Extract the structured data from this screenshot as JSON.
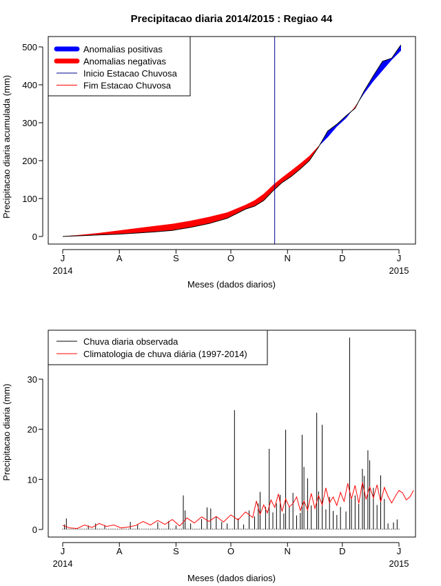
{
  "chart_data": [
    {
      "type": "area",
      "title": "Precipitacao diaria 2014/2015 : Regiao 44",
      "xlabel": "Meses (dados diarios)",
      "ylabel": "Precipitacao diaria acumulada (mm)",
      "ylim": [
        0,
        500
      ],
      "yticks": [
        0,
        100,
        200,
        300,
        400,
        500
      ],
      "month_ticks": [
        {
          "label": "J",
          "day": 0,
          "year": "2014"
        },
        {
          "label": "A",
          "day": 31
        },
        {
          "label": "S",
          "day": 62
        },
        {
          "label": "O",
          "day": 92
        },
        {
          "label": "N",
          "day": 123
        },
        {
          "label": "D",
          "day": 153
        },
        {
          "label": "J",
          "day": 184,
          "year": "2015"
        }
      ],
      "legend": {
        "position": "top-left",
        "items": [
          {
            "label": "Anomalias positivas",
            "color": "#0000ff",
            "style": "thick"
          },
          {
            "label": "Anomalias negativas",
            "color": "#ff0000",
            "style": "thick"
          },
          {
            "label": "Inicio Estacao Chuvosa",
            "color": "#00008b",
            "style": "line"
          },
          {
            "label": "Fim Estacao Chuvosa",
            "color": "#ff0000",
            "style": "line"
          }
        ]
      },
      "rainy_season_start_day": 116,
      "x_days": [
        0,
        10,
        20,
        30,
        40,
        50,
        60,
        70,
        80,
        90,
        100,
        105,
        110,
        115,
        120,
        125,
        130,
        135,
        140,
        145,
        150,
        155,
        160,
        165,
        170,
        175,
        180,
        185
      ],
      "observed": [
        0,
        2,
        4,
        6,
        9,
        12,
        16,
        24,
        34,
        48,
        72,
        80,
        95,
        120,
        142,
        158,
        178,
        200,
        236,
        278,
        296,
        318,
        338,
        384,
        424,
        462,
        470,
        505
      ],
      "climatology": [
        0,
        4,
        9,
        15,
        21,
        27,
        33,
        41,
        51,
        63,
        83,
        95,
        112,
        135,
        155,
        173,
        192,
        212,
        238,
        262,
        290,
        312,
        342,
        378,
        410,
        438,
        466,
        490
      ],
      "colors": {
        "positive": "#0000ff",
        "negative": "#ff0000",
        "line": "#000000",
        "start_line": "#00008b"
      }
    },
    {
      "type": "bar",
      "xlabel": "Meses (dados diarios)",
      "ylabel": "Precipitacao diaria (mm)",
      "ylim": [
        0,
        39
      ],
      "yticks": [
        0,
        10,
        20,
        30
      ],
      "month_ticks": [
        {
          "label": "J",
          "day": 0,
          "year": "2014"
        },
        {
          "label": "A",
          "day": 31
        },
        {
          "label": "S",
          "day": 62
        },
        {
          "label": "O",
          "day": 92
        },
        {
          "label": "N",
          "day": 123
        },
        {
          "label": "D",
          "day": 153
        },
        {
          "label": "J",
          "day": 184,
          "year": "2015"
        }
      ],
      "legend": {
        "position": "top-left",
        "items": [
          {
            "label": "Chuva diaria observada",
            "color": "#000000"
          },
          {
            "label": "Climatologia de chuva diária (1997-2014)",
            "color": "#ff0000"
          }
        ]
      },
      "observed_bars": [
        {
          "day": 1,
          "value": 1
        },
        {
          "day": 2,
          "value": 2.2
        },
        {
          "day": 14,
          "value": 0.8
        },
        {
          "day": 18,
          "value": 1.2
        },
        {
          "day": 23,
          "value": 0.9
        },
        {
          "day": 37,
          "value": 1.5
        },
        {
          "day": 41,
          "value": 1
        },
        {
          "day": 52,
          "value": 1.4
        },
        {
          "day": 58,
          "value": 1.7
        },
        {
          "day": 62,
          "value": 0.8
        },
        {
          "day": 66,
          "value": 6.8
        },
        {
          "day": 67,
          "value": 3.8
        },
        {
          "day": 70,
          "value": 1.2
        },
        {
          "day": 76,
          "value": 2.1
        },
        {
          "day": 79,
          "value": 4.4
        },
        {
          "day": 81,
          "value": 4.2
        },
        {
          "day": 84,
          "value": 2.6
        },
        {
          "day": 87,
          "value": 1.5
        },
        {
          "day": 90,
          "value": 1.2
        },
        {
          "day": 94,
          "value": 23.8
        },
        {
          "day": 96,
          "value": 2.2
        },
        {
          "day": 99,
          "value": 1
        },
        {
          "day": 102,
          "value": 3.8
        },
        {
          "day": 105,
          "value": 2.6
        },
        {
          "day": 107,
          "value": 5.2
        },
        {
          "day": 108,
          "value": 7.5
        },
        {
          "day": 111,
          "value": 4.5
        },
        {
          "day": 113,
          "value": 16.1
        },
        {
          "day": 115,
          "value": 3.4
        },
        {
          "day": 117,
          "value": 5.2
        },
        {
          "day": 119,
          "value": 6.9
        },
        {
          "day": 121,
          "value": 3.2
        },
        {
          "day": 122,
          "value": 19.9
        },
        {
          "day": 124,
          "value": 4.6
        },
        {
          "day": 126,
          "value": 7.3
        },
        {
          "day": 128,
          "value": 2.8
        },
        {
          "day": 130,
          "value": 3.3
        },
        {
          "day": 131,
          "value": 18.9
        },
        {
          "day": 132,
          "value": 12.5
        },
        {
          "day": 134,
          "value": 10.2
        },
        {
          "day": 136,
          "value": 4.8
        },
        {
          "day": 139,
          "value": 23.3
        },
        {
          "day": 140,
          "value": 7.6
        },
        {
          "day": 142,
          "value": 20.9
        },
        {
          "day": 144,
          "value": 4
        },
        {
          "day": 146,
          "value": 6.5
        },
        {
          "day": 148,
          "value": 3.7
        },
        {
          "day": 150,
          "value": 2.9
        },
        {
          "day": 152,
          "value": 4.5
        },
        {
          "day": 155,
          "value": 3.6
        },
        {
          "day": 157,
          "value": 38.3
        },
        {
          "day": 158,
          "value": 6.1
        },
        {
          "day": 160,
          "value": 6.8
        },
        {
          "day": 162,
          "value": 5.1
        },
        {
          "day": 164,
          "value": 12.1
        },
        {
          "day": 165,
          "value": 10.7
        },
        {
          "day": 167,
          "value": 15.8
        },
        {
          "day": 168,
          "value": 13.8
        },
        {
          "day": 170,
          "value": 8.3
        },
        {
          "day": 172,
          "value": 4.9
        },
        {
          "day": 174,
          "value": 10.8
        },
        {
          "day": 176,
          "value": 6.1
        },
        {
          "day": 178,
          "value": 1.2
        },
        {
          "day": 181,
          "value": 1.4
        },
        {
          "day": 183,
          "value": 2
        }
      ],
      "climatology_days": [
        0,
        4,
        8,
        12,
        16,
        20,
        24,
        28,
        32,
        36,
        40,
        44,
        48,
        52,
        56,
        60,
        64,
        68,
        72,
        76,
        80,
        84,
        88,
        92,
        96,
        100,
        104,
        106,
        108,
        110,
        112,
        114,
        116,
        118,
        120,
        122,
        124,
        126,
        128,
        130,
        132,
        134,
        136,
        138,
        140,
        142,
        144,
        146,
        148,
        150,
        152,
        154,
        156,
        158,
        160,
        162,
        164,
        166,
        168,
        170,
        172,
        174,
        176,
        178,
        180,
        182,
        184,
        186,
        188,
        190,
        192
      ],
      "climatology_values": [
        0.8,
        0.3,
        0.2,
        0.9,
        0.4,
        1.2,
        0.6,
        0.9,
        0.3,
        0.5,
        0.8,
        1.6,
        0.9,
        1.8,
        1,
        2,
        0.7,
        2.3,
        1.3,
        2.5,
        1.6,
        2.6,
        1.5,
        2.9,
        1.9,
        3.5,
        2.4,
        5.7,
        3,
        4.9,
        3.3,
        5.9,
        4.4,
        7.1,
        3.6,
        6.1,
        4.5,
        5.2,
        6.5,
        3.8,
        5.7,
        3.9,
        7.2,
        4.2,
        6.8,
        4.9,
        8.3,
        5.3,
        6.5,
        4.8,
        7.4,
        5.6,
        9.2,
        6.1,
        8.8,
        5.2,
        9.4,
        6,
        8.5,
        6.3,
        8.9,
        5.5,
        8.4,
        6.6,
        5.3,
        6.6,
        7.8,
        7.3,
        5.9,
        6.5,
        7.8
      ],
      "colors": {
        "bars": "#000000",
        "climatology": "#ff0000"
      }
    }
  ]
}
